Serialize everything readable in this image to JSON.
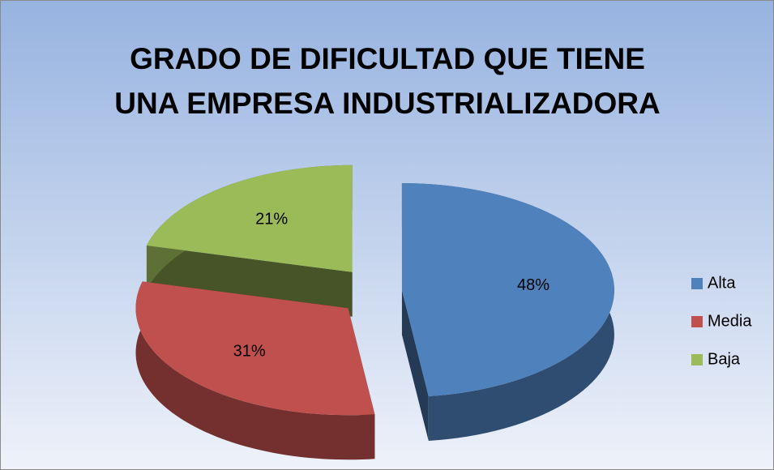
{
  "chart_data": {
    "type": "pie",
    "title": [
      "GRADO DE DIFICULTAD QUE TIENE",
      "UNA EMPRESA INDUSTRIALIZADORA"
    ],
    "categories": [
      "Alta",
      "Media",
      "Baja"
    ],
    "values": [
      48,
      31,
      21
    ],
    "value_labels": [
      "48%",
      "31%",
      "21%"
    ],
    "colors": [
      "#4f81bd",
      "#c0504d",
      "#9bbb59"
    ],
    "legend": "right"
  }
}
